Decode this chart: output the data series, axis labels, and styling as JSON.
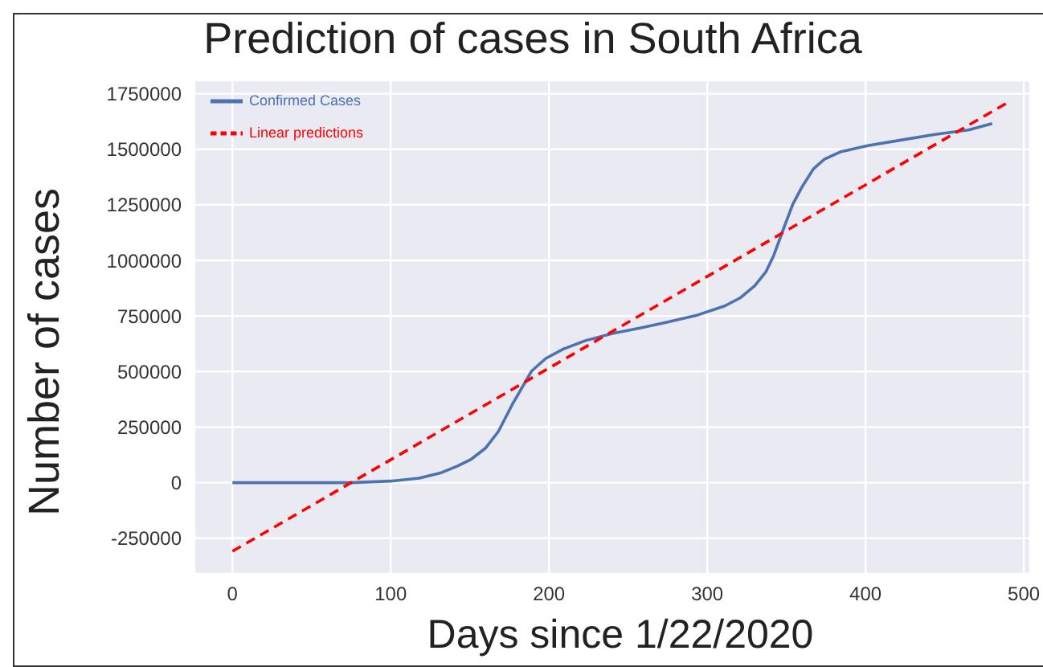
{
  "chart_data": {
    "type": "line",
    "title": "Prediction of cases in South Africa",
    "xlabel": "Days since 1/22/2020",
    "ylabel": "Number of cases",
    "xlim": [
      -24,
      504
    ],
    "xticks": [
      0,
      100,
      200,
      300,
      400,
      500
    ],
    "ylim": [
      -410000,
      1810000
    ],
    "yticks": [
      -250000,
      0,
      250000,
      500000,
      750000,
      1000000,
      1250000,
      1500000,
      1750000
    ],
    "grid": true,
    "legend": "top left",
    "marker": "none",
    "series": [
      {
        "name": "Confirmed Cases",
        "color": "#4c72b0",
        "line_style": "solid",
        "x": [
          0,
          75,
          100,
          118,
          132,
          142,
          151,
          160,
          168,
          177,
          189,
          198,
          209,
          223,
          240,
          258,
          275,
          293,
          311,
          321,
          330,
          337,
          342,
          349,
          354,
          360,
          367,
          374,
          384,
          402,
          423,
          444,
          465,
          480
        ],
        "values": [
          0,
          0,
          7000,
          20000,
          45000,
          74000,
          106000,
          156000,
          230000,
          354000,
          502000,
          559000,
          601000,
          639000,
          671000,
          696000,
          723000,
          752000,
          795000,
          832000,
          886000,
          948000,
          1022000,
          1158000,
          1252000,
          1332000,
          1411000,
          1455000,
          1488000,
          1517000,
          1542000,
          1567000,
          1587000,
          1616000
        ]
      },
      {
        "name": "Linear predictions",
        "color": "#ff0000",
        "line_style": "dashed",
        "x": [
          0,
          491
        ],
        "values": [
          -309000,
          1715000
        ]
      }
    ]
  }
}
